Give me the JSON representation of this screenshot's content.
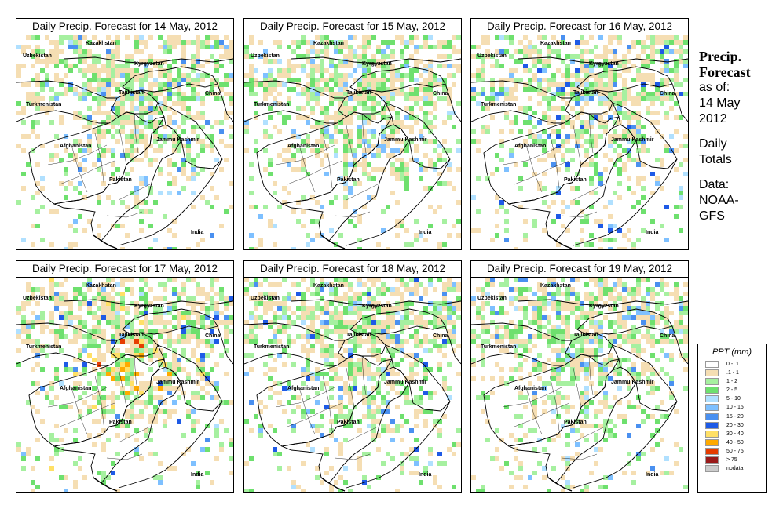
{
  "panels": [
    {
      "title": "Daily Precip. Forecast for  14 May, 2012"
    },
    {
      "title": "Daily Precip. Forecast for  15 May, 2012"
    },
    {
      "title": "Daily Precip. Forecast for  16 May, 2012"
    },
    {
      "title": "Daily Precip. Forecast for  17 May, 2012"
    },
    {
      "title": "Daily Precip. Forecast for  18 May, 2012"
    },
    {
      "title": "Daily Precip. Forecast for  19 May, 2012"
    }
  ],
  "map_labels": {
    "kazakhstan": "Kazakhstan",
    "uzbekistan": "Uzbekistan",
    "kyrgyzstan": "Kyrgyzstan",
    "tajikistan": "Tajikistan",
    "turkmenistan": "Turkmenistan",
    "china": "China",
    "jammu_kashmir": "Jammu Kashmir",
    "afghanistan": "Afghanistan",
    "pakistan": "Pakistan",
    "india": "India"
  },
  "sidebar": {
    "title_line1": "Precip.",
    "title_line2": "Forecast",
    "as_of_label": "as of:",
    "date_line1": "14 May",
    "date_line2": "2012",
    "totals_line1": "Daily",
    "totals_line2": "Totals",
    "data_label": "Data:",
    "source_line1": "NOAA-",
    "source_line2": "GFS"
  },
  "legend": {
    "title": "PPT (mm)",
    "items": [
      {
        "label": "0 - .1",
        "color": "#ffffff"
      },
      {
        "label": ".1 - 1",
        "color": "#f5deb3"
      },
      {
        "label": "1 - 2",
        "color": "#a6f0a0"
      },
      {
        "label": "2 - 5",
        "color": "#6ee06e"
      },
      {
        "label": "5 - 10",
        "color": "#b0e0ff"
      },
      {
        "label": "10 - 15",
        "color": "#7ec0ff"
      },
      {
        "label": "15 - 20",
        "color": "#4a90f0"
      },
      {
        "label": "20 - 30",
        "color": "#1e5ae6"
      },
      {
        "label": "30 - 40",
        "color": "#ffe066"
      },
      {
        "label": "40 - 50",
        "color": "#ffaa00"
      },
      {
        "label": "50 - 75",
        "color": "#e63c00"
      },
      {
        "label": "> 75",
        "color": "#9a1a1a"
      },
      {
        "label": "nodata",
        "color": "#cccccc"
      }
    ]
  }
}
